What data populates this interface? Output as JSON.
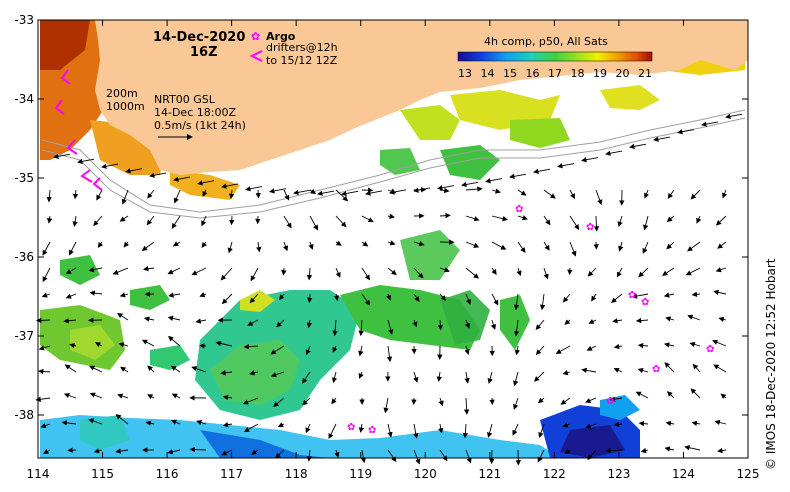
{
  "map": {
    "date": "14-Dec-2020",
    "hour": "16Z",
    "legend_argo": "Argo",
    "legend_drifters_1": "drifters@12h",
    "legend_drifters_2": "to 15/12 12Z",
    "isobath_1": "200m",
    "isobath_2": "1000m",
    "current_source": "NRT00 GSL",
    "current_time": "14-Dec 18:00Z",
    "current_scale": "0.5m/s (1kt 24h)",
    "colorbar_title": "4h comp, p50, All Sats",
    "colorbar_ticks": [
      "13",
      "14",
      "15",
      "16",
      "17",
      "18",
      "19",
      "20",
      "21"
    ],
    "lon_ticks": [
      "114",
      "115",
      "116",
      "117",
      "118",
      "119",
      "120",
      "121",
      "122",
      "123",
      "124",
      "125"
    ],
    "lat_ticks": [
      "-33",
      "-34",
      "-35",
      "-36",
      "-37",
      "-38"
    ],
    "credit": "© IMOS 18-Dec-2020 12:52 Hobart",
    "colors": {
      "land": "#f9c896",
      "argo": "#ff00ff",
      "drifter": "#ff00ff",
      "isobath": "#a0a0a0"
    }
  }
}
